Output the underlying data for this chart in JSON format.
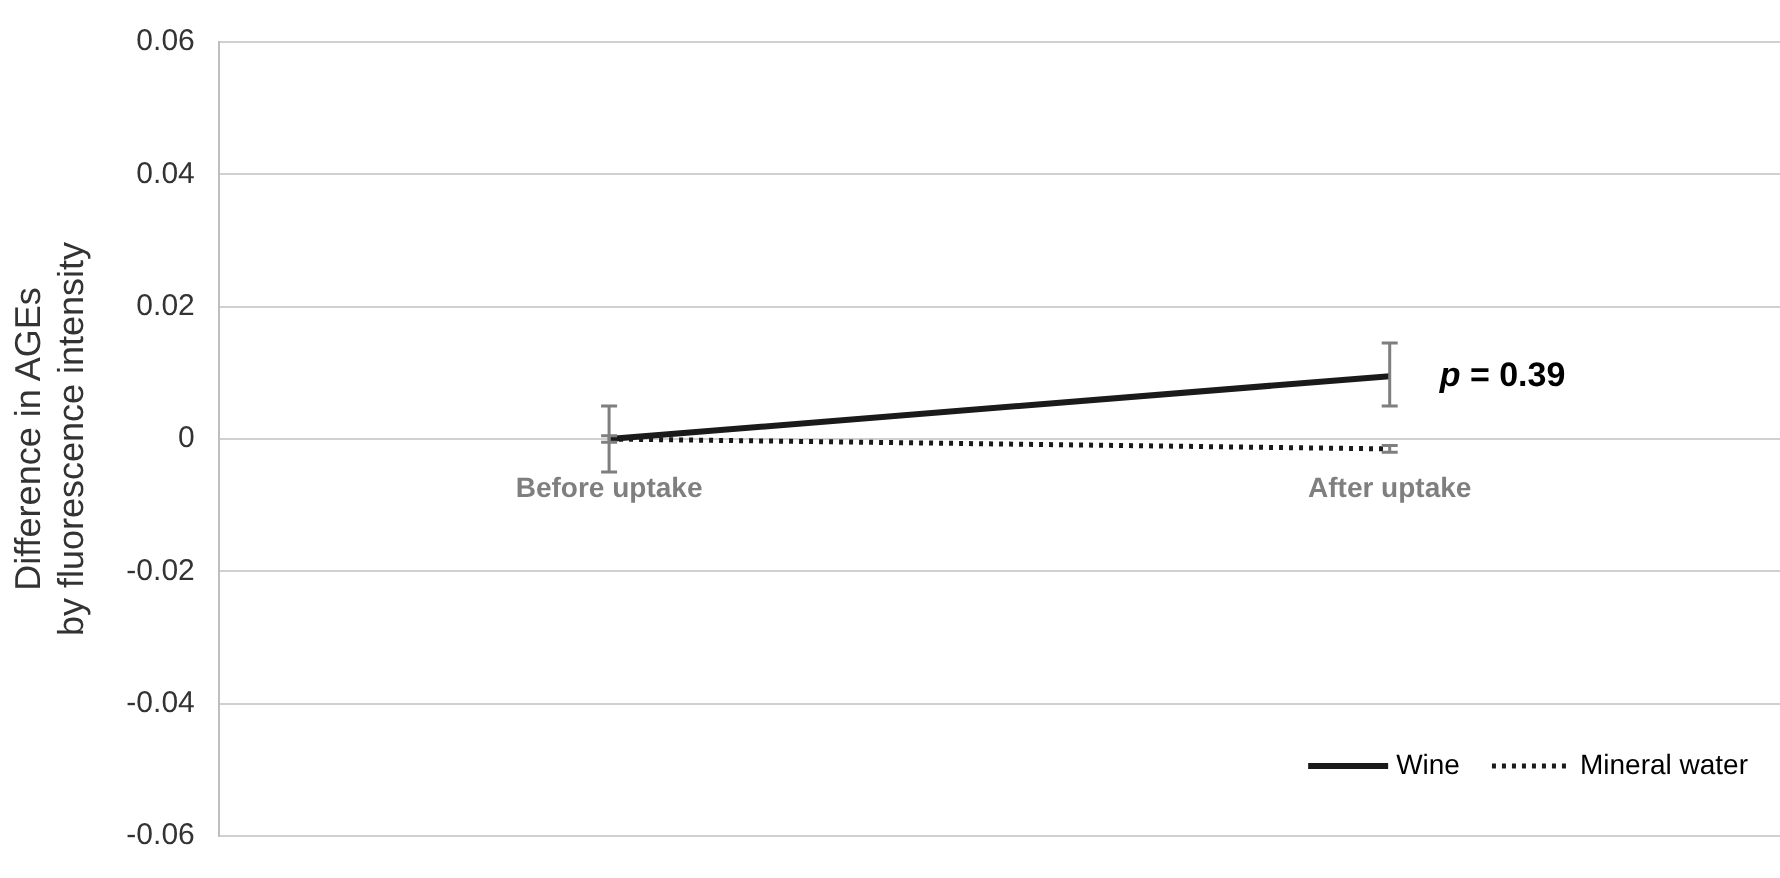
{
  "chart_data": {
    "type": "line",
    "ylabel": "Difference in AGEs\nby fluorescence intensity",
    "categories": [
      "Before uptake",
      "After uptake"
    ],
    "series": [
      {
        "name": "Wine",
        "color": "#1a1a1a",
        "values": [
          0,
          0.0095
        ],
        "errors": [
          0.005,
          [
            0.005,
            0.0145
          ]
        ],
        "line_style": "solid"
      },
      {
        "name": "Mineral water",
        "color": "#1a1a1a",
        "values": [
          0,
          -0.0015
        ],
        "errors": [
          0.0005,
          0.0005
        ],
        "line_style": "dotted"
      }
    ],
    "ylim": [
      -0.06,
      0.06
    ],
    "yticks": [
      -0.06,
      -0.04,
      -0.02,
      0,
      0.02,
      0.04,
      0.06
    ],
    "grid": "y",
    "legend": "bottom right",
    "marker": "none",
    "annotations": [
      {
        "text": "p = 0.39",
        "x": "After uptake",
        "y": 0.0095
      }
    ]
  }
}
